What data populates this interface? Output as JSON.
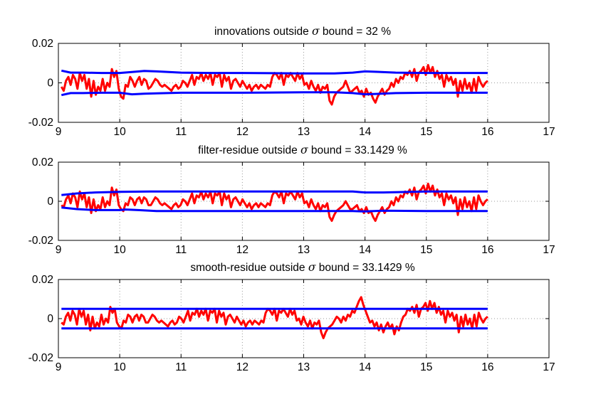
{
  "chart_data": [
    {
      "type": "line",
      "title": {
        "prefix": "innovations outside ",
        "symbol": "σ",
        "suffix": " bound = 32 %"
      },
      "xlim": [
        9,
        17
      ],
      "ylim": [
        -0.02,
        0.02
      ],
      "xticks": [
        9,
        10,
        11,
        12,
        13,
        14,
        15,
        16,
        17
      ],
      "xtick_labels": [
        "9",
        "10",
        "11",
        "12",
        "13",
        "14",
        "15",
        "16",
        "17"
      ],
      "yticks": [
        -0.02,
        0,
        0.02
      ],
      "ytick_labels": [
        "-0.02",
        "0",
        "0.02"
      ],
      "grid": "dotted",
      "x_range": [
        9.05,
        16.0
      ],
      "series": [
        {
          "role": "signal",
          "color": "#ff0000",
          "values": [
            -0.002,
            -0.004,
            0.001,
            0.003,
            -0.001,
            0.004,
            0.002,
            -0.003,
            0.005,
            0.001,
            0.004,
            -0.003,
            0.002,
            -0.007,
            0.001,
            -0.006,
            -0.002,
            -0.004,
            0.002,
            -0.004,
            0.0,
            -0.002,
            0.007,
            0.003,
            0.006,
            -0.003,
            -0.007,
            -0.008,
            -0.001,
            -0.002,
            0.003,
            0.001,
            -0.002,
            0.001,
            0.003,
            -0.001,
            0.002,
            0.001,
            -0.003,
            -0.002,
            0.0,
            0.002,
            0.001,
            -0.001,
            -0.002,
            -0.001,
            -0.002,
            -0.003,
            -0.004,
            -0.002,
            -0.001,
            -0.003,
            -0.002,
            0.001,
            0.0,
            -0.002,
            0.001,
            0.004,
            -0.001,
            0.003,
            0.002,
            0.005,
            0.001,
            0.004,
            0.002,
            0.005,
            -0.001,
            0.004,
            0.003,
            0.005,
            -0.002,
            0.004,
            0.001,
            0.003,
            -0.003,
            0.001,
            0.002,
            0.0,
            -0.002,
            0.001,
            -0.001,
            -0.003,
            -0.001,
            -0.004,
            -0.002,
            -0.001,
            -0.003,
            -0.001,
            -0.002,
            -0.003,
            -0.001,
            -0.002,
            0.003,
            0.005,
            0.004,
            0.002,
            0.005,
            -0.001,
            0.004,
            0.003,
            0.005,
            0.003,
            0.001,
            0.005,
            0.002,
            0.004,
            -0.001,
            0.0,
            -0.003,
            0.001,
            -0.002,
            -0.004,
            -0.001,
            -0.005,
            -0.002,
            -0.003,
            -0.001,
            -0.009,
            -0.011,
            -0.007,
            -0.005,
            -0.004,
            -0.003,
            -0.002,
            0.001,
            -0.002,
            -0.005,
            -0.004,
            -0.003,
            -0.002,
            -0.005,
            -0.004,
            -0.007,
            -0.003,
            -0.006,
            -0.005,
            -0.008,
            -0.01,
            -0.007,
            -0.005,
            -0.003,
            -0.006,
            -0.004,
            -0.003,
            0.0,
            -0.002,
            0.002,
            0.0,
            0.003,
            0.002,
            0.005,
            0.004,
            0.006,
            0.003,
            0.007,
            0.001,
            0.005,
            0.006,
            0.008,
            0.004,
            0.009,
            0.005,
            0.008,
            0.003,
            0.006,
            0.002,
            0.004,
            -0.002,
            0.004,
            0.001,
            0.003,
            -0.001,
            0.002,
            -0.007,
            0.001,
            -0.004,
            0.002,
            -0.003,
            0.0,
            -0.005,
            0.002,
            -0.004,
            0.003,
            0.0,
            -0.002,
            0.0,
            0.001
          ]
        },
        {
          "role": "upper bound",
          "color": "#0000ff",
          "x": [
            9.05,
            9.2,
            9.4,
            9.7,
            10.0,
            10.2,
            10.4,
            10.6,
            11.0,
            11.5,
            12.0,
            13.0,
            13.5,
            13.8,
            14.0,
            14.2,
            14.5,
            15.0,
            16.0
          ],
          "values": [
            0.0062,
            0.0052,
            0.0052,
            0.005,
            0.005,
            0.0055,
            0.006,
            0.0058,
            0.0052,
            0.005,
            0.005,
            0.0048,
            0.0048,
            0.0052,
            0.0058,
            0.0056,
            0.0052,
            0.005,
            0.005
          ]
        },
        {
          "role": "lower bound",
          "color": "#0000ff",
          "x": [
            9.05,
            9.2,
            9.4,
            9.7,
            10.0,
            10.2,
            10.4,
            10.6,
            11.0,
            11.5,
            12.0,
            13.0,
            13.5,
            13.8,
            14.0,
            14.2,
            14.5,
            15.0,
            16.0
          ],
          "values": [
            -0.0062,
            -0.0052,
            -0.0052,
            -0.005,
            -0.005,
            -0.0058,
            -0.0055,
            -0.0053,
            -0.005,
            -0.005,
            -0.005,
            -0.0048,
            -0.0048,
            -0.0052,
            -0.0058,
            -0.0056,
            -0.0052,
            -0.005,
            -0.005
          ]
        }
      ]
    },
    {
      "type": "line",
      "title": {
        "prefix": "filter-residue outside ",
        "symbol": "σ",
        "suffix": " bound = 33.1429 %"
      },
      "xlim": [
        9,
        17
      ],
      "ylim": [
        -0.02,
        0.02
      ],
      "xticks": [
        9,
        10,
        11,
        12,
        13,
        14,
        15,
        16,
        17
      ],
      "xtick_labels": [
        "9",
        "10",
        "11",
        "12",
        "13",
        "14",
        "15",
        "16",
        "17"
      ],
      "yticks": [
        -0.02,
        0,
        0.02
      ],
      "ytick_labels": [
        "-0.02",
        "0",
        "0.02"
      ],
      "grid": "dotted",
      "x_range": [
        9.05,
        16.0
      ],
      "series": [
        {
          "role": "signal",
          "color": "#ff0000",
          "values": [
            -0.002,
            -0.003,
            0.001,
            0.003,
            -0.001,
            0.004,
            0.002,
            -0.003,
            0.005,
            0.001,
            0.004,
            -0.003,
            0.002,
            -0.006,
            0.001,
            -0.005,
            -0.002,
            -0.004,
            0.002,
            -0.003,
            0.0,
            -0.002,
            0.007,
            0.003,
            0.006,
            -0.002,
            -0.004,
            -0.005,
            -0.001,
            -0.002,
            0.002,
            0.001,
            -0.002,
            0.001,
            0.002,
            -0.001,
            0.002,
            0.001,
            -0.002,
            -0.002,
            0.0,
            0.002,
            0.001,
            -0.001,
            -0.002,
            -0.001,
            -0.002,
            -0.003,
            -0.004,
            -0.002,
            -0.001,
            -0.003,
            -0.002,
            0.001,
            0.0,
            -0.002,
            0.001,
            0.004,
            -0.001,
            0.003,
            0.002,
            0.005,
            0.001,
            0.004,
            0.002,
            0.005,
            -0.001,
            0.004,
            0.003,
            0.005,
            -0.002,
            0.004,
            0.001,
            0.003,
            -0.003,
            0.001,
            0.002,
            0.0,
            -0.002,
            0.001,
            -0.001,
            -0.003,
            -0.001,
            -0.004,
            -0.002,
            -0.001,
            -0.003,
            -0.001,
            -0.002,
            -0.003,
            -0.001,
            -0.002,
            0.003,
            0.005,
            0.004,
            0.002,
            0.005,
            -0.001,
            0.004,
            0.003,
            0.005,
            0.003,
            0.001,
            0.005,
            0.002,
            0.004,
            -0.001,
            0.0,
            -0.003,
            0.001,
            -0.002,
            -0.004,
            -0.001,
            -0.005,
            -0.002,
            -0.003,
            -0.001,
            -0.008,
            -0.01,
            -0.007,
            -0.005,
            -0.004,
            -0.003,
            -0.002,
            0.0,
            -0.002,
            -0.004,
            -0.004,
            -0.003,
            -0.002,
            -0.005,
            -0.004,
            -0.006,
            -0.003,
            -0.006,
            -0.005,
            -0.008,
            -0.01,
            -0.007,
            -0.005,
            -0.003,
            -0.006,
            -0.004,
            -0.003,
            0.0,
            -0.002,
            0.002,
            0.0,
            0.003,
            0.002,
            0.005,
            0.004,
            0.006,
            0.003,
            0.007,
            0.001,
            0.005,
            0.006,
            0.008,
            0.004,
            0.009,
            0.005,
            0.008,
            0.003,
            0.006,
            0.002,
            0.004,
            -0.002,
            0.004,
            0.001,
            0.003,
            -0.001,
            0.002,
            -0.007,
            0.001,
            -0.004,
            0.002,
            -0.003,
            0.0,
            -0.005,
            0.002,
            -0.004,
            0.003,
            0.0,
            -0.002,
            0.0,
            0.001
          ]
        },
        {
          "role": "upper bound",
          "color": "#0000ff",
          "x": [
            9.05,
            9.3,
            9.6,
            10.0,
            10.5,
            11.0,
            12.0,
            13.0,
            13.8,
            14.0,
            14.3,
            15.0,
            16.0
          ],
          "values": [
            0.0032,
            0.004,
            0.0045,
            0.0048,
            0.005,
            0.005,
            0.005,
            0.005,
            0.005,
            0.0045,
            0.0045,
            0.005,
            0.005
          ]
        },
        {
          "role": "lower bound",
          "color": "#0000ff",
          "x": [
            9.05,
            9.3,
            9.6,
            10.0,
            10.1,
            10.3,
            10.6,
            11.0,
            12.0,
            13.0,
            13.8,
            14.0,
            14.3,
            15.0,
            16.0
          ],
          "values": [
            -0.0032,
            -0.004,
            -0.0045,
            -0.0045,
            -0.0042,
            -0.0045,
            -0.005,
            -0.005,
            -0.005,
            -0.005,
            -0.005,
            -0.0052,
            -0.0048,
            -0.005,
            -0.005
          ]
        }
      ]
    },
    {
      "type": "line",
      "title": {
        "prefix": "smooth-residue outside ",
        "symbol": "σ",
        "suffix": " bound = 33.1429 %"
      },
      "xlim": [
        9,
        17
      ],
      "ylim": [
        -0.02,
        0.02
      ],
      "xticks": [
        9,
        10,
        11,
        12,
        13,
        14,
        15,
        16,
        17
      ],
      "xtick_labels": [
        "9",
        "10",
        "11",
        "12",
        "13",
        "14",
        "15",
        "16",
        "17"
      ],
      "yticks": [
        -0.02,
        0,
        0.02
      ],
      "ytick_labels": [
        "-0.02",
        "0",
        "0.02"
      ],
      "grid": "dotted",
      "x_range": [
        9.05,
        16.0
      ],
      "series": [
        {
          "role": "signal",
          "color": "#ff0000",
          "values": [
            -0.002,
            -0.003,
            0.001,
            0.003,
            -0.001,
            0.004,
            0.002,
            -0.003,
            0.005,
            0.001,
            0.004,
            -0.003,
            0.002,
            -0.006,
            0.001,
            -0.005,
            -0.002,
            -0.004,
            0.002,
            -0.003,
            0.0,
            -0.002,
            0.006,
            0.003,
            0.005,
            -0.002,
            -0.004,
            -0.005,
            -0.001,
            -0.002,
            0.002,
            0.001,
            -0.002,
            0.001,
            0.002,
            -0.001,
            0.002,
            0.001,
            -0.002,
            -0.002,
            0.0,
            0.002,
            0.001,
            -0.001,
            -0.002,
            -0.001,
            -0.002,
            -0.003,
            -0.004,
            -0.002,
            -0.001,
            -0.003,
            -0.002,
            0.001,
            0.0,
            -0.002,
            0.001,
            0.004,
            -0.001,
            0.003,
            0.002,
            0.005,
            0.001,
            0.004,
            0.002,
            0.005,
            -0.001,
            0.004,
            0.003,
            0.005,
            -0.002,
            0.004,
            0.001,
            0.003,
            -0.003,
            0.001,
            0.002,
            0.0,
            -0.002,
            0.001,
            -0.001,
            -0.003,
            -0.001,
            -0.004,
            -0.002,
            -0.001,
            -0.003,
            -0.001,
            -0.002,
            -0.003,
            -0.001,
            -0.002,
            0.003,
            0.005,
            0.004,
            0.002,
            0.005,
            -0.001,
            0.004,
            0.003,
            0.005,
            0.003,
            0.001,
            0.005,
            0.002,
            0.004,
            -0.001,
            0.0,
            -0.003,
            0.001,
            -0.002,
            -0.004,
            -0.001,
            -0.005,
            -0.002,
            -0.003,
            -0.001,
            -0.007,
            -0.01,
            -0.007,
            -0.005,
            -0.004,
            -0.003,
            -0.001,
            0.001,
            0.0,
            -0.002,
            0.001,
            -0.001,
            0.002,
            0.001,
            0.004,
            0.003,
            0.006,
            0.009,
            0.011,
            0.007,
            0.004,
            0.001,
            -0.002,
            -0.001,
            -0.004,
            -0.002,
            -0.006,
            -0.003,
            -0.007,
            -0.004,
            -0.002,
            -0.005,
            -0.003,
            -0.008,
            -0.004,
            -0.006,
            -0.002,
            0.001,
            0.002,
            0.005,
            0.004,
            0.006,
            0.003,
            0.007,
            0.001,
            0.005,
            0.006,
            0.008,
            0.004,
            0.009,
            0.005,
            0.008,
            0.003,
            0.006,
            0.002,
            0.004,
            -0.002,
            0.004,
            0.001,
            0.003,
            -0.001,
            0.002,
            -0.007,
            0.001,
            -0.004,
            0.002,
            -0.003,
            0.0,
            -0.005,
            0.002,
            -0.004,
            0.003,
            0.0,
            -0.002,
            0.0,
            0.001
          ]
        },
        {
          "role": "upper bound",
          "color": "#0000ff",
          "x": [
            9.05,
            16.0
          ],
          "values": [
            0.005,
            0.005
          ]
        },
        {
          "role": "lower bound",
          "color": "#0000ff",
          "x": [
            9.05,
            16.0
          ],
          "values": [
            -0.005,
            -0.005
          ]
        }
      ]
    }
  ]
}
